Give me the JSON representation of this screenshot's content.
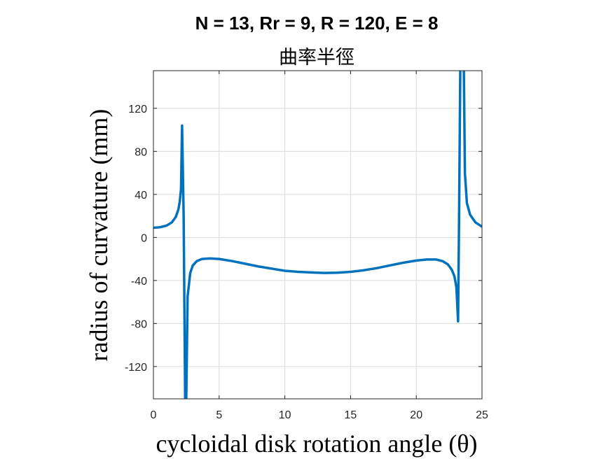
{
  "chart_data": {
    "type": "line",
    "title": "N = 13, Rr = 9, R = 120, E = 8",
    "subtitle": "曲率半徑",
    "xlabel": "cycloidal disk rotation angle (θ)",
    "ylabel": "radius of curvature (mm)",
    "xlim": [
      0,
      25
    ],
    "ylim": [
      -150,
      155
    ],
    "xticks": [
      0,
      5,
      10,
      15,
      20,
      25
    ],
    "yticks": [
      -120,
      -80,
      -40,
      0,
      40,
      80,
      120
    ],
    "grid": true,
    "series": [
      {
        "color": "#0072bd",
        "x": [
          0,
          0.5,
          1.0,
          1.4,
          1.7,
          1.9,
          2.0,
          2.1,
          2.18,
          2.3,
          2.42,
          2.5,
          2.6,
          2.8,
          3.0,
          3.3,
          3.7,
          4.3,
          5,
          6,
          7,
          8,
          9,
          10,
          11,
          12,
          13,
          14,
          15,
          16,
          17,
          18,
          19,
          20,
          20.8,
          21.5,
          22.0,
          22.4,
          22.7,
          22.9,
          23.05,
          23.18,
          23.25,
          23.35,
          23.5,
          23.62,
          23.7,
          23.85,
          24.1,
          24.5,
          25
        ],
        "y": [
          9,
          9.5,
          11,
          14,
          19,
          26,
          33,
          45,
          104,
          20,
          -160,
          -150,
          -55,
          -33,
          -26,
          -22,
          -20,
          -19.5,
          -20,
          -22,
          -24.5,
          -27,
          -29,
          -31,
          -32,
          -32.5,
          -33,
          -32.8,
          -32,
          -30.5,
          -28.5,
          -26,
          -23.5,
          -21.5,
          -20.5,
          -20.5,
          -22,
          -25,
          -30,
          -36,
          -46,
          -78,
          10,
          160,
          160,
          155,
          60,
          32,
          21,
          14,
          10
        ]
      }
    ]
  }
}
